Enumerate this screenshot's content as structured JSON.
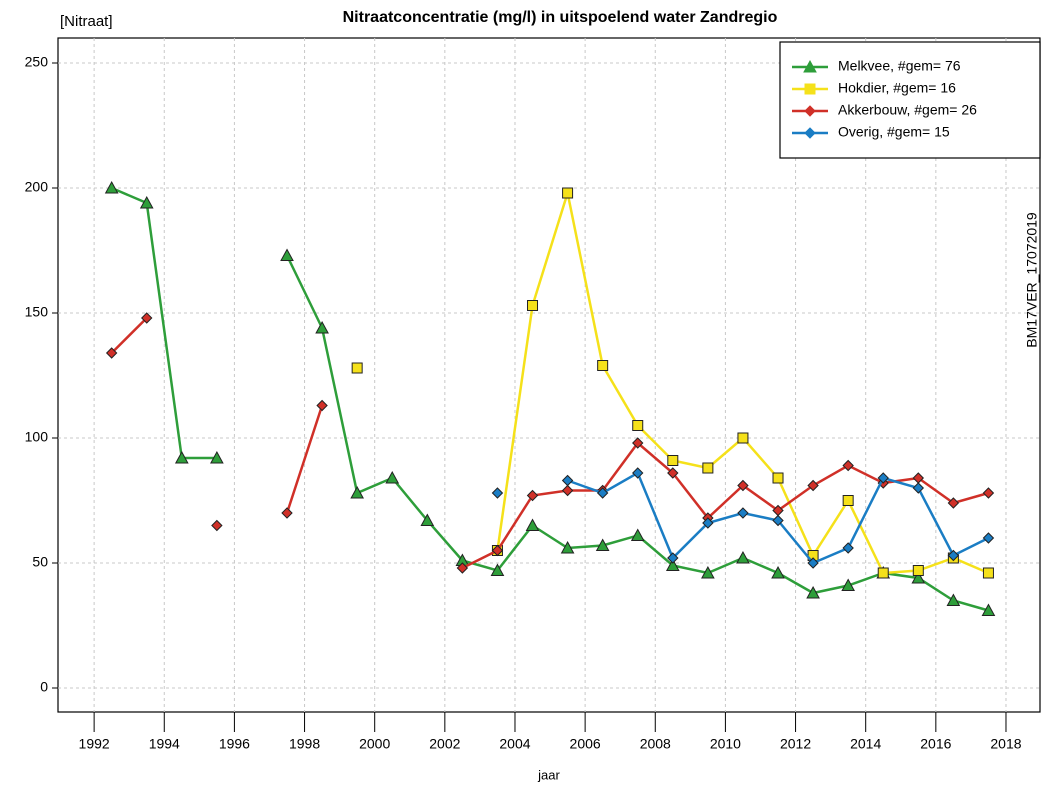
{
  "chart_data": {
    "type": "line",
    "title": "Nitraatconcentratie (mg/l) in uitspoelend water Zandregio",
    "y_label": "[Nitraat]",
    "x_label": "jaar",
    "side_note": "BM17VER_17072019",
    "x": [
      1992.5,
      1993.5,
      1994.5,
      1995.5,
      1996.5,
      1997.5,
      1998.5,
      1999.5,
      2000.5,
      2001.5,
      2002.5,
      2003.5,
      2004.5,
      2005.5,
      2006.5,
      2007.5,
      2008.5,
      2009.5,
      2010.5,
      2011.5,
      2012.5,
      2013.5,
      2014.5,
      2015.5,
      2016.5,
      2017.5
    ],
    "series": [
      {
        "name": "Melkvee, #gem= 76",
        "color": "#2e9e3a",
        "marker": "triangle",
        "values": [
          200,
          194,
          92,
          92,
          null,
          173,
          144,
          78,
          84,
          67,
          51,
          47,
          65,
          56,
          57,
          61,
          49,
          46,
          52,
          46,
          38,
          41,
          46,
          44,
          35,
          31
        ]
      },
      {
        "name": "Hokdier, #gem= 16",
        "color": "#f5e11a",
        "marker": "square",
        "values": [
          null,
          null,
          null,
          null,
          null,
          null,
          null,
          128,
          null,
          null,
          null,
          55,
          153,
          198,
          129,
          105,
          91,
          88,
          100,
          84,
          53,
          75,
          46,
          47,
          52,
          46
        ]
      },
      {
        "name": "Akkerbouw, #gem= 26",
        "color": "#d03028",
        "marker": "diamond",
        "values": [
          134,
          148,
          null,
          65,
          null,
          70,
          113,
          null,
          null,
          null,
          48,
          55,
          77,
          79,
          79,
          98,
          86,
          68,
          81,
          71,
          81,
          89,
          82,
          84,
          74,
          78
        ]
      },
      {
        "name": "Overig, #gem= 15",
        "color": "#1a7dc4",
        "marker": "diamond",
        "values": [
          null,
          null,
          null,
          null,
          null,
          null,
          null,
          null,
          null,
          null,
          null,
          78,
          null,
          83,
          78,
          86,
          52,
          66,
          70,
          67,
          50,
          56,
          84,
          80,
          53,
          60
        ]
      }
    ],
    "xlim": [
      1990.97,
      2018.97
    ],
    "xticks": [
      1992,
      1994,
      1996,
      1998,
      2000,
      2002,
      2004,
      2006,
      2008,
      2010,
      2012,
      2014,
      2016,
      2018
    ],
    "ylim": [
      -9.6,
      260
    ],
    "yticks": [
      0,
      50,
      100,
      150,
      200,
      250
    ],
    "grid": true,
    "legend": "top-right"
  }
}
